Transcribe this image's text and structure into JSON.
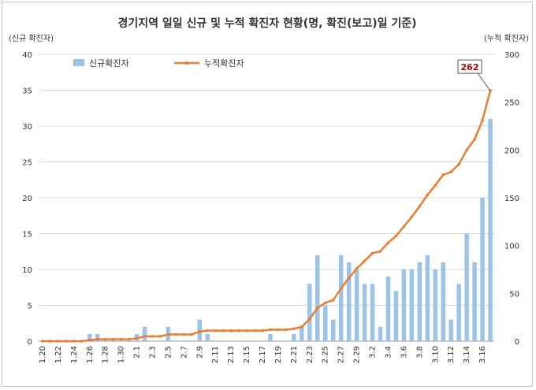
{
  "chart_data": {
    "type": "bar+line",
    "title": "경기지역 일일 신규 및 누적 확진자 현황(명, 확진(보고)일 기준)",
    "y_left_label": "(신규 확진자)",
    "y_right_label": "(누적 확진자)",
    "y_left_lim": [
      0,
      40
    ],
    "y_left_ticks": [
      0,
      5,
      10,
      15,
      20,
      25,
      30,
      35,
      40
    ],
    "y_right_lim": [
      0,
      300
    ],
    "y_right_ticks": [
      0,
      50,
      100,
      150,
      200,
      250,
      300
    ],
    "grid": true,
    "legend_position": "top-left",
    "categories": [
      "1.20",
      "1.21",
      "1.22",
      "1.23",
      "1.24",
      "1.25",
      "1.26",
      "1.27",
      "1.28",
      "1.29",
      "1.30",
      "1.31",
      "2.1",
      "2.2",
      "2.3",
      "2.4",
      "2.5",
      "2.6",
      "2.7",
      "2.8",
      "2.9",
      "2.10",
      "2.11",
      "2.12",
      "2.13",
      "2.14",
      "2.15",
      "2.16",
      "2.17",
      "2.18",
      "2.19",
      "2.20",
      "2.21",
      "2.22",
      "2.23",
      "2.24",
      "2.25",
      "2.26",
      "2.27",
      "2.28",
      "2.29",
      "3.1",
      "3.2",
      "3.3",
      "3.4",
      "3.5",
      "3.6",
      "3.7",
      "3.8",
      "3.9",
      "3.10",
      "3.11",
      "3.12",
      "3.13",
      "3.14",
      "3.15",
      "3.16",
      "3.17"
    ],
    "x_tick_labels": [
      "1.20",
      "1.22",
      "1.24",
      "1.26",
      "1.28",
      "1.30",
      "2.1",
      "2.3",
      "2.5",
      "2.7",
      "2.9",
      "2.11",
      "2.13",
      "2.15",
      "2.17",
      "2.19",
      "2.21",
      "2.23",
      "2.25",
      "2.27",
      "2.29",
      "3.2",
      "3.4",
      "3.6",
      "3.8",
      "3.10",
      "3.12",
      "3.14",
      "3.16"
    ],
    "series": [
      {
        "name": "신규확진자",
        "type": "bar",
        "axis": "left",
        "color": "#9dc3e6",
        "values": [
          0,
          0,
          0,
          0,
          0,
          0,
          1,
          1,
          0,
          0,
          0,
          0,
          1,
          2,
          0,
          0,
          2,
          0,
          0,
          0,
          3,
          1,
          0,
          0,
          0,
          0,
          0,
          0,
          0,
          1,
          0,
          0,
          1,
          2,
          8,
          12,
          5,
          3,
          12,
          11,
          10,
          8,
          8,
          2,
          9,
          7,
          10,
          10,
          11,
          12,
          10,
          11,
          3,
          8,
          15,
          11,
          20,
          31
        ]
      },
      {
        "name": "누적확진자",
        "type": "line",
        "axis": "right",
        "color": "#ed7d31",
        "values": [
          0,
          0,
          0,
          0,
          0,
          0,
          1,
          2,
          2,
          2,
          2,
          2,
          3,
          5,
          5,
          5,
          7,
          7,
          7,
          7,
          10,
          11,
          11,
          11,
          11,
          11,
          11,
          11,
          11,
          12,
          12,
          12,
          13,
          15,
          23,
          35,
          40,
          43,
          55,
          66,
          76,
          84,
          92,
          94,
          103,
          110,
          120,
          130,
          141,
          153,
          163,
          174,
          177,
          185,
          200,
          211,
          231,
          262
        ]
      }
    ],
    "annotation": {
      "category": "3.17",
      "text": "262"
    }
  }
}
